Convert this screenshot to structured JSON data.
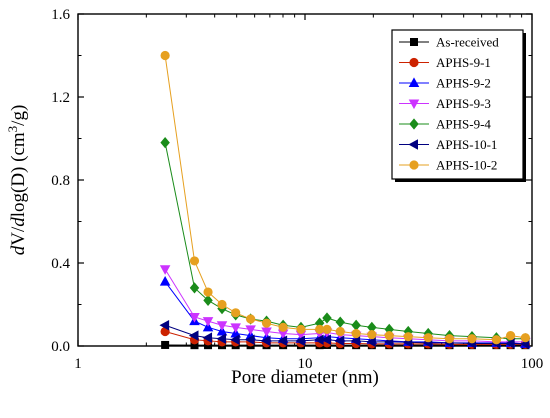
{
  "chart_data": {
    "type": "line",
    "title": "",
    "xlabel": "Pore diameter (nm)",
    "ylabel_parts": {
      "d1": "d",
      "mid": "V/",
      "d2": "d",
      "rest": "log(D) (cm",
      "sup": "3",
      "end": "/g)"
    },
    "x_scale": "log",
    "xlim": [
      1,
      100
    ],
    "ylim": [
      0,
      1.6
    ],
    "x_ticks": [
      1,
      10,
      100
    ],
    "x_tick_labels": [
      "1",
      "10",
      "100"
    ],
    "y_ticks": [
      0,
      0.4,
      0.8,
      1.2,
      1.6
    ],
    "y_tick_labels": [
      "0.0",
      "0.4",
      "0.8",
      "1.2",
      "1.6"
    ],
    "legend_position": "top-right",
    "x": [
      2.42,
      3.26,
      3.74,
      4.31,
      4.95,
      5.76,
      6.77,
      8.01,
      9.6,
      11.6,
      12.5,
      14.3,
      16.8,
      19.7,
      23.5,
      28.5,
      34.9,
      43.3,
      54.4,
      69.7,
      80.5,
      93.5
    ],
    "series": [
      {
        "name": "As-received",
        "color": "#000000",
        "marker": "square",
        "values": [
          0.005,
          0.004,
          0.004,
          0.004,
          0.004,
          0.004,
          0.004,
          0.004,
          0.004,
          0.004,
          0.005,
          0.004,
          0.004,
          0.004,
          0.004,
          0.004,
          0.004,
          0.004,
          0.004,
          0.004,
          0.004,
          0.004
        ]
      },
      {
        "name": "APHS-9-1",
        "color": "#cc2200",
        "marker": "circle",
        "values": [
          0.07,
          0.03,
          0.025,
          0.02,
          0.02,
          0.02,
          0.015,
          0.015,
          0.015,
          0.015,
          0.015,
          0.012,
          0.012,
          0.01,
          0.01,
          0.01,
          0.01,
          0.008,
          0.008,
          0.008,
          0.008,
          0.008
        ]
      },
      {
        "name": "APHS-9-2",
        "color": "#0000ff",
        "marker": "triangle-up",
        "values": [
          0.31,
          0.12,
          0.09,
          0.07,
          0.06,
          0.05,
          0.04,
          0.035,
          0.035,
          0.04,
          0.045,
          0.04,
          0.035,
          0.03,
          0.025,
          0.02,
          0.02,
          0.015,
          0.015,
          0.015,
          0.015,
          0.01
        ]
      },
      {
        "name": "APHS-9-3",
        "color": "#cc33ff",
        "marker": "triangle-down",
        "values": [
          0.37,
          0.14,
          0.12,
          0.1,
          0.09,
          0.08,
          0.07,
          0.06,
          0.055,
          0.06,
          0.065,
          0.055,
          0.05,
          0.045,
          0.04,
          0.035,
          0.03,
          0.025,
          0.025,
          0.02,
          0.02,
          0.02
        ]
      },
      {
        "name": "APHS-9-4",
        "color": "#1a8c1a",
        "marker": "diamond",
        "values": [
          0.98,
          0.28,
          0.22,
          0.18,
          0.15,
          0.13,
          0.12,
          0.1,
          0.09,
          0.11,
          0.135,
          0.115,
          0.1,
          0.09,
          0.08,
          0.07,
          0.06,
          0.05,
          0.045,
          0.04,
          0.035,
          0.035
        ]
      },
      {
        "name": "APHS-10-1",
        "color": "#000080",
        "marker": "triangle-left",
        "values": [
          0.1,
          0.05,
          0.04,
          0.035,
          0.03,
          0.03,
          0.025,
          0.025,
          0.025,
          0.03,
          0.03,
          0.025,
          0.025,
          0.02,
          0.02,
          0.018,
          0.015,
          0.015,
          0.012,
          0.012,
          0.012,
          0.01
        ]
      },
      {
        "name": "APHS-10-2",
        "color": "#e6a020",
        "marker": "circle",
        "values": [
          1.4,
          0.41,
          0.26,
          0.2,
          0.16,
          0.13,
          0.11,
          0.09,
          0.08,
          0.08,
          0.08,
          0.07,
          0.06,
          0.055,
          0.05,
          0.045,
          0.04,
          0.035,
          0.035,
          0.03,
          0.05,
          0.04
        ]
      }
    ]
  }
}
